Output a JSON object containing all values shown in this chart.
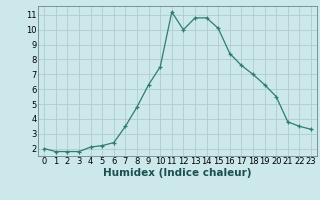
{
  "x": [
    0,
    1,
    2,
    3,
    4,
    5,
    6,
    7,
    8,
    9,
    10,
    11,
    12,
    13,
    14,
    15,
    16,
    17,
    18,
    19,
    20,
    21,
    22,
    23
  ],
  "y": [
    2.0,
    1.8,
    1.8,
    1.8,
    2.1,
    2.2,
    2.4,
    3.5,
    4.8,
    6.3,
    7.5,
    11.2,
    10.0,
    10.8,
    10.8,
    10.1,
    8.4,
    7.6,
    7.0,
    6.3,
    5.5,
    3.8,
    3.5,
    3.3
  ],
  "xlabel": "Humidex (Indice chaleur)",
  "xlim": [
    -0.5,
    23.5
  ],
  "ylim": [
    1.5,
    11.6
  ],
  "yticks": [
    2,
    3,
    4,
    5,
    6,
    7,
    8,
    9,
    10,
    11
  ],
  "xticks": [
    0,
    1,
    2,
    3,
    4,
    5,
    6,
    7,
    8,
    9,
    10,
    11,
    12,
    13,
    14,
    15,
    16,
    17,
    18,
    19,
    20,
    21,
    22,
    23
  ],
  "line_color": "#2e7d6e",
  "marker": "+",
  "bg_color": "#cce8ea",
  "grid_color": "#b0cccc",
  "xlabel_fontsize": 7.5,
  "tick_fontsize": 6.0
}
